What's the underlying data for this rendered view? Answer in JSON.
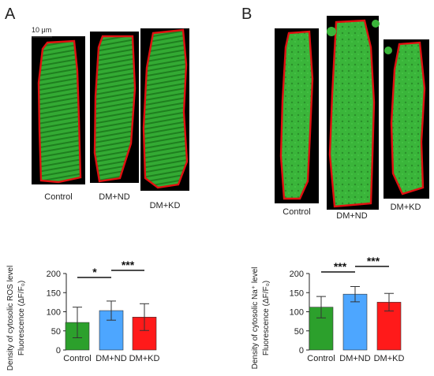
{
  "panels": [
    {
      "letter": "A",
      "scale_bar_label": "10 μm",
      "image_labels": [
        "Control",
        "DM+ND",
        "DM+KD"
      ],
      "sig_labels": [
        "*",
        "***"
      ]
    },
    {
      "letter": "B",
      "scale_bar_label": "",
      "image_labels": [
        "Control",
        "DM+ND",
        "DM+KD"
      ],
      "sig_labels": [
        "***",
        "***"
      ]
    }
  ],
  "colors": {
    "control": "#2ca02c",
    "dm_nd": "#4da6ff",
    "dm_kd": "#ff1a1a",
    "cell_fill": "#2fa82f",
    "cell_outline": "#e01010"
  },
  "chart_data": [
    {
      "type": "bar",
      "categories": [
        "Control",
        "DM+ND",
        "DM+KD"
      ],
      "values": [
        72,
        103,
        86
      ],
      "errors": [
        40,
        25,
        35
      ],
      "ylim": [
        0,
        200
      ],
      "yticks": [
        0,
        50,
        100,
        150,
        200
      ],
      "ylabel_line1": "Density of cytosolic ROS level",
      "ylabel_line2": "Fluorescence (ΔF/F₀)",
      "significance": [
        {
          "from": 0,
          "to": 1,
          "label": "*"
        },
        {
          "from": 1,
          "to": 2,
          "label": "***"
        }
      ]
    },
    {
      "type": "bar",
      "categories": [
        "Control",
        "DM+ND",
        "DM+KD"
      ],
      "values": [
        112,
        146,
        125
      ],
      "errors": [
        28,
        20,
        23
      ],
      "ylim": [
        0,
        200
      ],
      "yticks": [
        0,
        50,
        100,
        150,
        200
      ],
      "ylabel_line1": "Density of cytosolic Na⁺ level",
      "ylabel_line2": "Fluorescence (ΔF/F₀)",
      "significance": [
        {
          "from": 0,
          "to": 1,
          "label": "***"
        },
        {
          "from": 1,
          "to": 2,
          "label": "***"
        }
      ]
    }
  ]
}
